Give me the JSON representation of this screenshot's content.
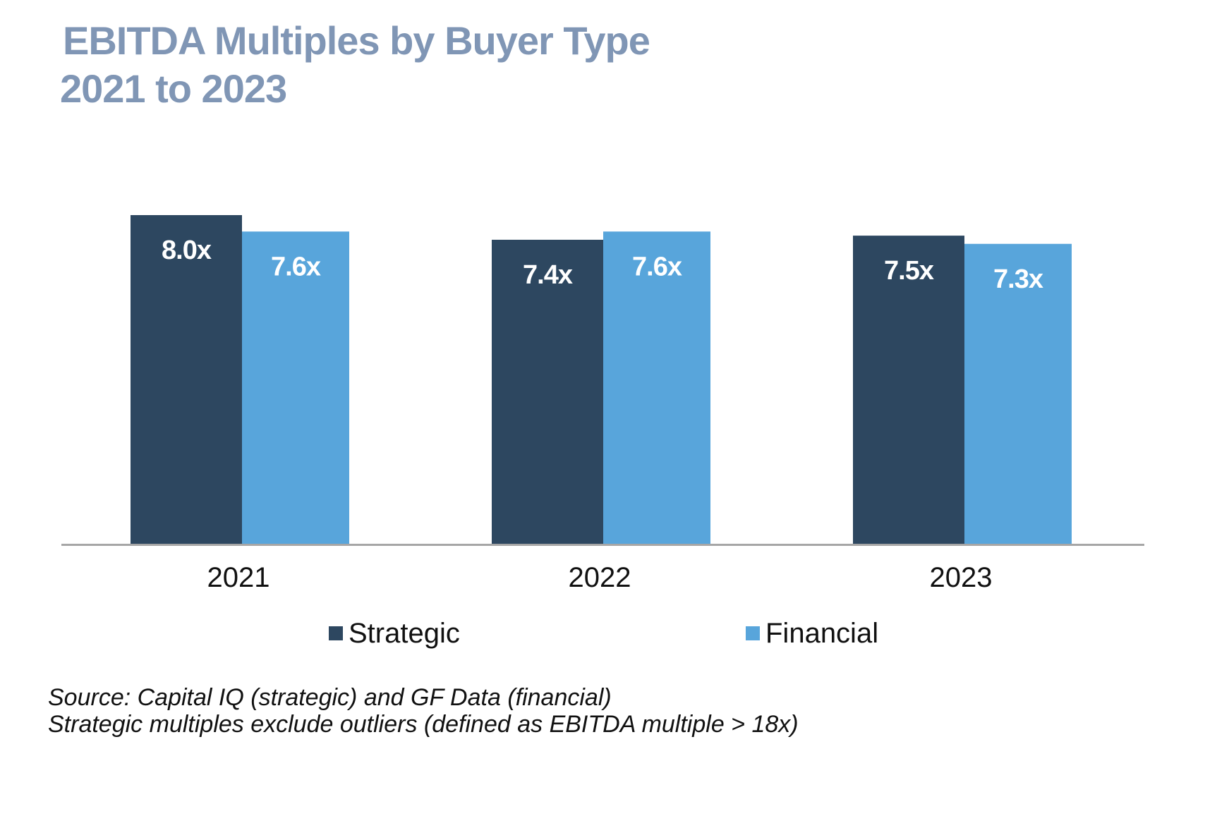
{
  "colors": {
    "title": "#8096b5",
    "strategic": "#2d4760",
    "financial": "#58a5db",
    "axis": "#a6a6a6",
    "bar_label": "#ffffff"
  },
  "title_lines": [
    "EBITDA Multiples by Buyer Type",
    "2021 to 2023"
  ],
  "footnotes": [
    "Source: Capital IQ (strategic) and GF Data (financial)",
    "Strategic multiples exclude outliers (defined as EBITDA multiple > 18x)"
  ],
  "chart_data": {
    "type": "bar",
    "title": "EBITDA Multiples by Buyer Type 2021 to 2023",
    "categories": [
      "2021",
      "2022",
      "2023"
    ],
    "series": [
      {
        "name": "Strategic",
        "values": [
          8.0,
          7.4,
          7.5
        ],
        "labels": [
          "8.0x",
          "7.4x",
          "7.5x"
        ]
      },
      {
        "name": "Financial",
        "values": [
          7.6,
          7.6,
          7.3
        ],
        "labels": [
          "7.6x",
          "7.6x",
          "7.3x"
        ]
      }
    ],
    "ylim": [
      0,
      8.0
    ],
    "grid": false,
    "legend": "bottom",
    "xlabel": "",
    "ylabel": ""
  }
}
